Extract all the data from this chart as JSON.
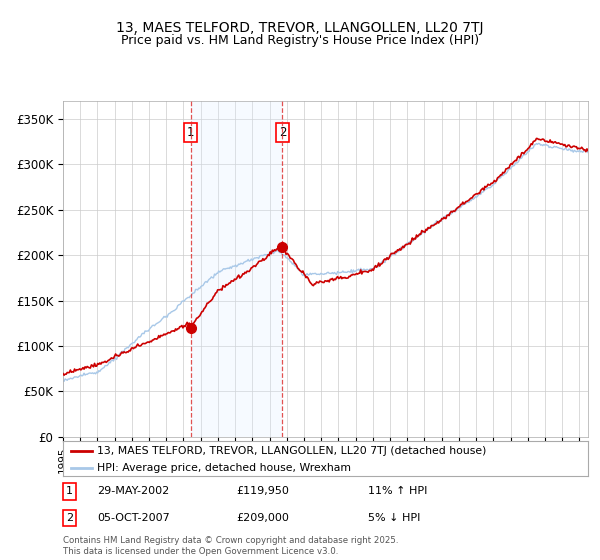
{
  "title": "13, MAES TELFORD, TREVOR, LLANGOLLEN, LL20 7TJ",
  "subtitle": "Price paid vs. HM Land Registry's House Price Index (HPI)",
  "ylim": [
    0,
    370000
  ],
  "yticks": [
    0,
    50000,
    100000,
    150000,
    200000,
    250000,
    300000,
    350000
  ],
  "ytick_labels": [
    "£0",
    "£50K",
    "£100K",
    "£150K",
    "£200K",
    "£250K",
    "£300K",
    "£350K"
  ],
  "sale1_price": 119950,
  "sale1_date_str": "29-MAY-2002",
  "sale1_hpi_note": "11% ↑ HPI",
  "sale1_year": 2002.41,
  "sale2_price": 209000,
  "sale2_date_str": "05-OCT-2007",
  "sale2_hpi_note": "5% ↓ HPI",
  "sale2_year": 2007.75,
  "hpi_color": "#a8c8e8",
  "price_color": "#cc0000",
  "span_color": "#ddeeff",
  "background_color": "#ffffff",
  "grid_color": "#cccccc",
  "legend_label_price": "13, MAES TELFORD, TREVOR, LLANGOLLEN, LL20 7TJ (detached house)",
  "legend_label_hpi": "HPI: Average price, detached house, Wrexham",
  "footer": "Contains HM Land Registry data © Crown copyright and database right 2025.\nThis data is licensed under the Open Government Licence v3.0.",
  "title_fontsize": 10,
  "subtitle_fontsize": 9
}
